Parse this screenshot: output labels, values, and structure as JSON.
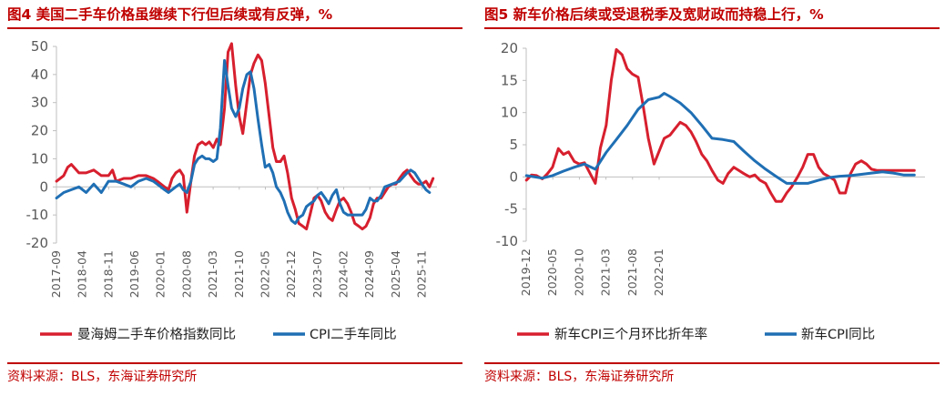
{
  "colors": {
    "red": "#d71f2e",
    "blue": "#1f6fb4",
    "accent": "#c00000",
    "axis": "#bfbfbf"
  },
  "chart_data": [
    {
      "type": "line",
      "title": "图4  美国二手车价格虽继续下行但后续或有反弹，%",
      "source": "资料来源：BLS，东海证券研究所",
      "ylim": [
        -20,
        50
      ],
      "yticks": [
        "50",
        "40",
        "30",
        "20",
        "10",
        "0",
        "-10",
        "-20"
      ],
      "xlim": [
        2017.667,
        2026.167
      ],
      "xtick_labels": [
        "2017-09",
        "2018-04",
        "2018-11",
        "2019-06",
        "2020-01",
        "2020-08",
        "2021-03",
        "2021-10",
        "2022-05",
        "2022-12",
        "2023-07",
        "2024-02",
        "2024-09",
        "2025-04",
        "2025-11"
      ],
      "series": [
        {
          "name": "曼海姆二手车价格指数同比",
          "color": "#d71f2e",
          "x": [
            2017.67,
            2017.83,
            2017.92,
            2018.0,
            2018.17,
            2018.33,
            2018.5,
            2018.67,
            2018.83,
            2018.92,
            2019.0,
            2019.17,
            2019.33,
            2019.5,
            2019.67,
            2019.83,
            2019.92,
            2020.0,
            2020.08,
            2020.17,
            2020.25,
            2020.33,
            2020.42,
            2020.5,
            2020.58,
            2020.67,
            2020.75,
            2020.83,
            2020.92,
            2021.0,
            2021.08,
            2021.17,
            2021.25,
            2021.33,
            2021.42,
            2021.5,
            2021.58,
            2021.67,
            2021.75,
            2021.83,
            2021.92,
            2022.0,
            2022.08,
            2022.17,
            2022.25,
            2022.33,
            2022.42,
            2022.5,
            2022.58,
            2022.67,
            2022.75,
            2022.83,
            2022.92,
            2023.0,
            2023.08,
            2023.17,
            2023.25,
            2023.33,
            2023.42,
            2023.5,
            2023.58,
            2023.67,
            2023.75,
            2023.83,
            2023.92,
            2024.0,
            2024.08,
            2024.17,
            2024.25,
            2024.33,
            2024.42,
            2024.5,
            2024.58,
            2024.67,
            2024.75,
            2024.83,
            2024.92,
            2025.0,
            2025.08,
            2025.17,
            2025.25,
            2025.33,
            2025.42,
            2025.5,
            2025.58,
            2025.67,
            2025.75,
            2025.83,
            2025.92,
            2026.0,
            2026.08
          ],
          "values": [
            2,
            4,
            7,
            8,
            5,
            5,
            6,
            4,
            4,
            6,
            2,
            3,
            3,
            4,
            4,
            3,
            2,
            1,
            0,
            -1,
            3,
            5,
            6,
            4,
            -9,
            2,
            11,
            15,
            16,
            15,
            16,
            14,
            17,
            15,
            28,
            48,
            51,
            36,
            25,
            19,
            30,
            40,
            44,
            47,
            45,
            37,
            25,
            14,
            9,
            9,
            11,
            5,
            -4,
            -8,
            -13,
            -14,
            -15,
            -10,
            -4,
            -3,
            -5,
            -9,
            -11,
            -12,
            -8,
            -5,
            -4,
            -6,
            -9,
            -13,
            -14,
            -15,
            -14,
            -11,
            -6,
            -4,
            -4,
            -2,
            0,
            1,
            1,
            3,
            5,
            6,
            4,
            2,
            1,
            1,
            2,
            0,
            3
          ]
        },
        {
          "name": "CPI二手车同比",
          "color": "#1f6fb4",
          "x": [
            2017.67,
            2017.83,
            2018.0,
            2018.17,
            2018.33,
            2018.5,
            2018.67,
            2018.83,
            2019.0,
            2019.17,
            2019.33,
            2019.5,
            2019.67,
            2019.83,
            2020.0,
            2020.08,
            2020.17,
            2020.25,
            2020.33,
            2020.42,
            2020.5,
            2020.58,
            2020.67,
            2020.75,
            2020.83,
            2020.92,
            2021.0,
            2021.08,
            2021.17,
            2021.25,
            2021.33,
            2021.42,
            2021.5,
            2021.58,
            2021.67,
            2021.75,
            2021.83,
            2021.92,
            2022.0,
            2022.08,
            2022.17,
            2022.25,
            2022.33,
            2022.42,
            2022.5,
            2022.58,
            2022.67,
            2022.75,
            2022.83,
            2022.92,
            2023.0,
            2023.08,
            2023.17,
            2023.25,
            2023.33,
            2023.42,
            2023.5,
            2023.58,
            2023.67,
            2023.75,
            2023.83,
            2023.92,
            2024.0,
            2024.08,
            2024.17,
            2024.25,
            2024.33,
            2024.42,
            2024.5,
            2024.58,
            2024.67,
            2024.75,
            2024.83,
            2024.92,
            2025.0,
            2025.17,
            2025.33,
            2025.5,
            2025.58,
            2025.67,
            2025.75,
            2025.83,
            2025.92,
            2026.0
          ],
          "values": [
            -4,
            -2,
            -1,
            0,
            -2,
            1,
            -2,
            2,
            2,
            1,
            0,
            2,
            3,
            2,
            0,
            -1,
            -2,
            -1,
            0,
            1,
            -1,
            -2,
            2,
            8,
            10,
            11,
            10,
            10,
            9,
            10,
            21,
            45,
            36,
            28,
            25,
            28,
            35,
            40,
            41,
            35,
            24,
            15,
            7,
            8,
            5,
            0,
            -2,
            -5,
            -9,
            -12,
            -13,
            -11,
            -10,
            -7,
            -6,
            -5,
            -3,
            -2,
            -4,
            -6,
            -3,
            -1,
            -6,
            -9,
            -10,
            -10,
            -10,
            -10,
            -10,
            -8,
            -4,
            -5,
            -5,
            -3,
            0,
            1,
            2,
            5,
            6,
            5,
            3,
            1,
            -1,
            -2
          ]
        }
      ]
    },
    {
      "type": "line",
      "title": "图5  新车价格后续或受退税季及宽财政而持稳上行，%",
      "source": "资料来源：BLS，东海证券研究所",
      "ylim": [
        -10,
        20
      ],
      "yticks": [
        "20",
        "15",
        "10",
        "5",
        "0",
        "-5",
        "-10"
      ],
      "xlim": [
        2019.917,
        2026.167
      ],
      "xtick_labels": [
        "2019-12",
        "2020-05",
        "2020-10",
        "2021-03",
        "2021-08",
        "2022-01"
      ],
      "series": [
        {
          "name": "新车CPI三个月环比折年率",
          "color": "#d71f2e",
          "x": [
            2019.92,
            2020.0,
            2020.08,
            2020.17,
            2020.25,
            2020.33,
            2020.42,
            2020.5,
            2020.58,
            2020.67,
            2020.75,
            2020.83,
            2020.92,
            2021.0,
            2021.08,
            2021.17,
            2021.25,
            2021.33,
            2021.42,
            2021.5,
            2021.58,
            2021.67,
            2021.75,
            2021.83,
            2021.92,
            2022.0,
            2022.08,
            2022.17,
            2022.25,
            2022.33,
            2022.42,
            2022.5,
            2022.58,
            2022.67,
            2022.75,
            2022.83,
            2022.92,
            2023.0,
            2023.08,
            2023.17,
            2023.25,
            2023.33,
            2023.42,
            2023.5,
            2023.58,
            2023.67,
            2023.75,
            2023.83,
            2023.92,
            2024.0,
            2024.08,
            2024.17,
            2024.25,
            2024.33,
            2024.42,
            2024.5,
            2024.58,
            2024.67,
            2024.75,
            2024.83,
            2024.92,
            2025.0,
            2025.08,
            2025.17,
            2025.25,
            2025.33,
            2025.42,
            2025.5,
            2025.58,
            2025.67,
            2025.75,
            2025.83,
            2025.92,
            2026.0
          ],
          "values": [
            -0.5,
            0.3,
            0.2,
            -0.3,
            0.5,
            1.5,
            4.4,
            3.5,
            3.9,
            2.4,
            2.0,
            2.2,
            0.5,
            -1.0,
            4.5,
            8.0,
            15.0,
            19.8,
            19.0,
            16.8,
            16.0,
            15.5,
            11.0,
            6.0,
            2.0,
            4.0,
            6.0,
            6.5,
            7.5,
            8.5,
            8.0,
            7.0,
            5.5,
            3.5,
            2.5,
            1.0,
            -0.5,
            -1.0,
            0.5,
            1.5,
            1.0,
            0.5,
            0.0,
            0.3,
            -0.5,
            -1.0,
            -2.5,
            -3.8,
            -3.8,
            -2.5,
            -1.5,
            0.0,
            1.5,
            3.5,
            3.5,
            1.5,
            0.5,
            0.0,
            -0.5,
            -2.5,
            -2.5,
            0.5,
            2.0,
            2.5,
            2.0,
            1.2,
            1.0,
            1.0,
            1.0,
            1.0,
            1.0,
            1.0,
            1.0,
            1.0
          ]
        },
        {
          "name": "新车CPI同比",
          "color": "#1f6fb4",
          "x": [
            2019.92,
            2020.17,
            2020.33,
            2020.5,
            2020.67,
            2020.83,
            2021.0,
            2021.17,
            2021.33,
            2021.5,
            2021.67,
            2021.83,
            2022.0,
            2022.08,
            2022.17,
            2022.33,
            2022.5,
            2022.67,
            2022.83,
            2023.0,
            2023.17,
            2023.33,
            2023.5,
            2023.67,
            2023.83,
            2024.0,
            2024.17,
            2024.33,
            2024.5,
            2024.67,
            2024.83,
            2025.0,
            2025.17,
            2025.33,
            2025.5,
            2025.67,
            2025.83,
            2026.0
          ],
          "values": [
            0.2,
            -0.2,
            0.2,
            0.9,
            1.5,
            2.0,
            1.2,
            3.8,
            5.8,
            8.0,
            10.5,
            12.0,
            12.4,
            13.0,
            12.5,
            11.5,
            10.0,
            8.0,
            6.0,
            5.8,
            5.5,
            4.0,
            2.5,
            1.2,
            0.1,
            -1.0,
            -1.0,
            -1.0,
            -0.5,
            -0.1,
            0.1,
            0.2,
            0.4,
            0.6,
            0.8,
            0.6,
            0.3,
            0.3
          ]
        }
      ]
    }
  ]
}
